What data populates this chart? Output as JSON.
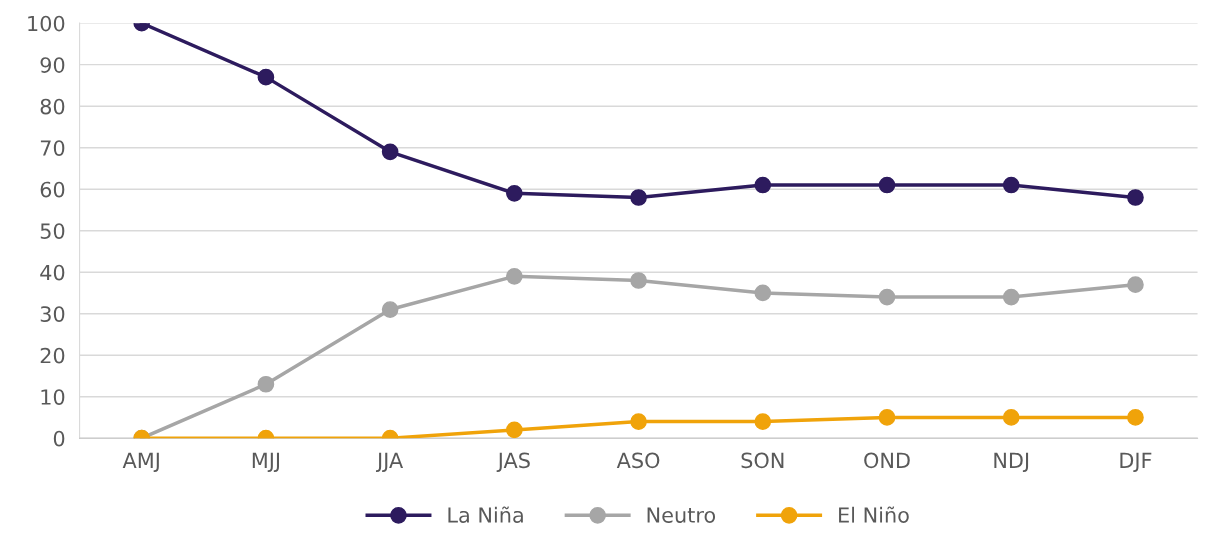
{
  "chart_data": {
    "type": "line",
    "categories": [
      "AMJ",
      "MJJ",
      "JJA",
      "JAS",
      "ASO",
      "SON",
      "OND",
      "NDJ",
      "DJF"
    ],
    "series": [
      {
        "name": "La Niña",
        "color": "#2d1b5e",
        "values": [
          100,
          87,
          69,
          59,
          58,
          61,
          61,
          61,
          58
        ]
      },
      {
        "name": "Neutro",
        "color": "#a6a6a6",
        "values": [
          0,
          13,
          31,
          39,
          38,
          35,
          34,
          34,
          37
        ]
      },
      {
        "name": "El Niño",
        "color": "#f0a30a",
        "values": [
          0,
          0,
          0,
          2,
          4,
          4,
          5,
          5,
          5
        ]
      }
    ],
    "ylim": [
      0,
      100
    ],
    "yticks": [
      0,
      10,
      20,
      30,
      40,
      50,
      60,
      70,
      80,
      90,
      100
    ],
    "grid": "y",
    "legend": "bottom",
    "marker": "circle",
    "line_style": "solid"
  }
}
